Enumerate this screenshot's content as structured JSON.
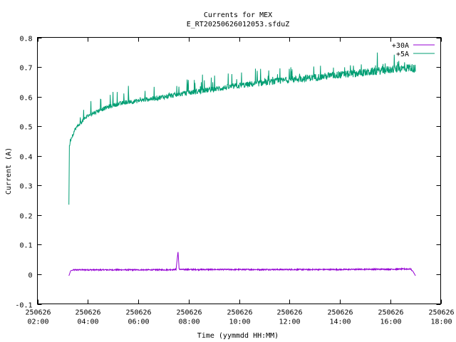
{
  "chart_data": {
    "type": "line",
    "title": "Currents for MEX",
    "subtitle": "E_RT20250626012053.sfduZ",
    "xlabel": "Time (yymmdd HH:MM)",
    "ylabel": "Current (A)",
    "xlim_hours": [
      2,
      18
    ],
    "ylim": [
      -0.1,
      0.8
    ],
    "y_ticks": [
      "-0.1",
      "0",
      "0.1",
      "0.2",
      "0.3",
      "0.4",
      "0.5",
      "0.6",
      "0.7",
      "0.8"
    ],
    "x_ticks": [
      {
        "date": "250626",
        "time": "02:00"
      },
      {
        "date": "250626",
        "time": "04:00"
      },
      {
        "date": "250626",
        "time": "06:00"
      },
      {
        "date": "250626",
        "time": "08:00"
      },
      {
        "date": "250626",
        "time": "10:00"
      },
      {
        "date": "250626",
        "time": "12:00"
      },
      {
        "date": "250626",
        "time": "14:00"
      },
      {
        "date": "250626",
        "time": "16:00"
      },
      {
        "date": "250626",
        "time": "18:00"
      }
    ],
    "grid": false,
    "legend_position": "top-right",
    "series": [
      {
        "name": "+30A",
        "color": "#9400d3",
        "x": [
          3.25,
          3.32,
          3.4,
          3.5,
          4.0,
          5.0,
          6.0,
          7.0,
          7.5,
          7.58,
          7.62,
          7.7,
          8.0,
          9.0,
          10.0,
          11.0,
          12.0,
          13.0,
          14.0,
          15.0,
          16.0,
          16.8,
          16.9,
          17.0
        ],
        "y": [
          -0.005,
          0.012,
          0.014,
          0.015,
          0.015,
          0.015,
          0.015,
          0.015,
          0.016,
          0.077,
          0.018,
          0.016,
          0.016,
          0.016,
          0.016,
          0.016,
          0.016,
          0.016,
          0.016,
          0.017,
          0.017,
          0.018,
          0.01,
          -0.005
        ]
      },
      {
        "name": "+5A",
        "color": "#009e73",
        "x": [
          3.25,
          3.27,
          3.3,
          3.4,
          3.5,
          3.7,
          4.0,
          4.5,
          5.0,
          5.5,
          6.0,
          6.5,
          7.0,
          7.5,
          8.0,
          8.5,
          9.0,
          9.5,
          10.0,
          10.5,
          11.0,
          11.5,
          12.0,
          12.5,
          13.0,
          13.5,
          14.0,
          14.5,
          15.0,
          15.5,
          16.0,
          16.5,
          16.8,
          17.0
        ],
        "y": [
          0.235,
          0.43,
          0.45,
          0.47,
          0.49,
          0.51,
          0.535,
          0.555,
          0.57,
          0.58,
          0.585,
          0.592,
          0.598,
          0.605,
          0.612,
          0.618,
          0.624,
          0.63,
          0.636,
          0.641,
          0.646,
          0.651,
          0.656,
          0.66,
          0.664,
          0.668,
          0.672,
          0.676,
          0.68,
          0.685,
          0.69,
          0.694,
          0.697,
          0.692
        ]
      }
    ]
  }
}
